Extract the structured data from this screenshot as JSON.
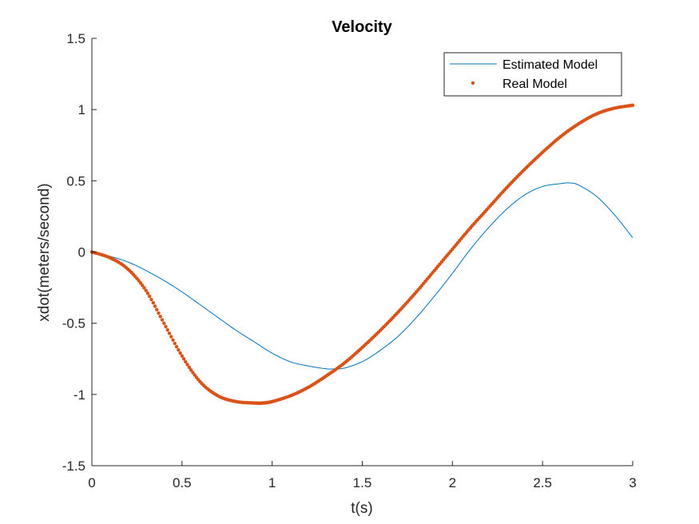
{
  "chart_data": {
    "type": "line",
    "title": "Velocity",
    "xlabel": "t(s)",
    "ylabel": "xdot(meters/second)",
    "xlim": [
      0,
      3
    ],
    "ylim": [
      -1.5,
      1.5
    ],
    "xticks": [
      0,
      0.5,
      1,
      1.5,
      2,
      2.5,
      3
    ],
    "xtick_labels": [
      "0",
      "0.5",
      "1",
      "1.5",
      "2",
      "2.5",
      "3"
    ],
    "yticks": [
      -1.5,
      -1,
      -0.5,
      0,
      0.5,
      1,
      1.5
    ],
    "ytick_labels": [
      "-1.5",
      "-1",
      "-0.5",
      "0",
      "0.5",
      "1",
      "1.5"
    ],
    "grid": false,
    "legend_position": "top-right",
    "series": [
      {
        "name": "Estimated Model",
        "style": "line",
        "color": "#0072BD",
        "x": [
          0,
          0.1,
          0.2,
          0.3,
          0.4,
          0.5,
          0.6,
          0.7,
          0.8,
          0.9,
          1.0,
          1.1,
          1.2,
          1.3,
          1.35,
          1.4,
          1.5,
          1.6,
          1.7,
          1.8,
          1.9,
          2.0,
          2.1,
          2.2,
          2.3,
          2.4,
          2.5,
          2.6,
          2.65,
          2.7,
          2.8,
          2.9,
          3.0
        ],
        "y": [
          0,
          -0.03,
          -0.07,
          -0.13,
          -0.2,
          -0.28,
          -0.37,
          -0.46,
          -0.55,
          -0.63,
          -0.71,
          -0.77,
          -0.8,
          -0.82,
          -0.82,
          -0.815,
          -0.77,
          -0.69,
          -0.59,
          -0.46,
          -0.31,
          -0.15,
          0.02,
          0.17,
          0.3,
          0.4,
          0.46,
          0.48,
          0.485,
          0.47,
          0.39,
          0.26,
          0.1
        ]
      },
      {
        "name": "Real Model",
        "style": "dots",
        "color": "#D95319",
        "x": [
          0,
          0.1,
          0.2,
          0.3,
          0.4,
          0.5,
          0.6,
          0.7,
          0.8,
          0.9,
          0.95,
          1.0,
          1.1,
          1.2,
          1.3,
          1.4,
          1.5,
          1.6,
          1.7,
          1.8,
          1.9,
          2.0,
          2.1,
          2.2,
          2.3,
          2.4,
          2.5,
          2.6,
          2.7,
          2.8,
          2.9,
          3.0
        ],
        "y": [
          0,
          -0.04,
          -0.12,
          -0.27,
          -0.5,
          -0.73,
          -0.91,
          -1.01,
          -1.05,
          -1.06,
          -1.06,
          -1.05,
          -1.01,
          -0.95,
          -0.87,
          -0.78,
          -0.67,
          -0.55,
          -0.42,
          -0.28,
          -0.13,
          0.02,
          0.17,
          0.31,
          0.45,
          0.58,
          0.7,
          0.81,
          0.9,
          0.97,
          1.01,
          1.03
        ]
      }
    ]
  }
}
